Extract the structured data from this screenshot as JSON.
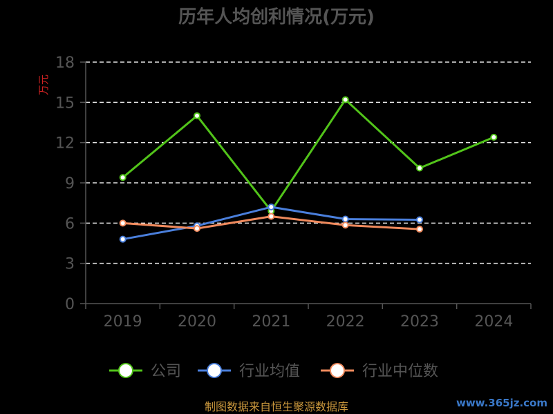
{
  "chart_data": {
    "type": "line",
    "title": "历年人均创利情况(万元)",
    "ylabel": "万元",
    "categories": [
      "2019",
      "2020",
      "2021",
      "2022",
      "2023",
      "2024"
    ],
    "ylim": [
      0,
      18
    ],
    "yticks": [
      0,
      3,
      6,
      9,
      12,
      15,
      18
    ],
    "grid": true,
    "legend_position": "bottom",
    "series": [
      {
        "name": "公司",
        "color": "#52c41a",
        "values": [
          9.4,
          14.0,
          6.9,
          15.2,
          10.1,
          12.4
        ]
      },
      {
        "name": "行业均值",
        "color": "#4a7fdc",
        "values": [
          4.8,
          5.8,
          7.2,
          6.3,
          6.25,
          null
        ]
      },
      {
        "name": "行业中位数",
        "color": "#f08a5d",
        "values": [
          6.0,
          5.6,
          6.5,
          5.85,
          5.55,
          null
        ]
      }
    ]
  },
  "footer": {
    "source": "制图数据来自恒生聚源数据库",
    "watermark": "www.365jz.com"
  }
}
